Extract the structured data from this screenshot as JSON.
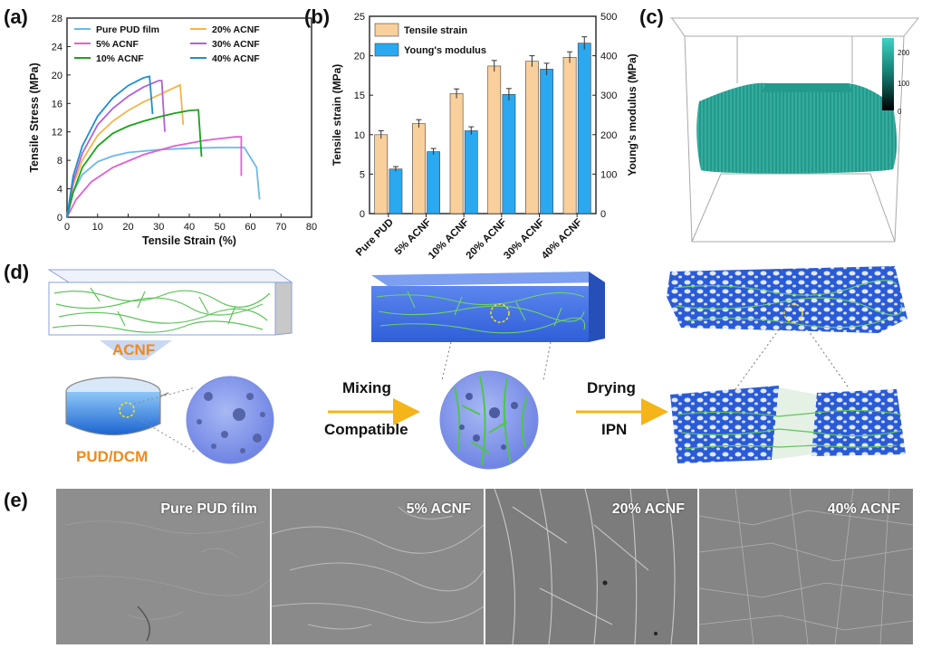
{
  "panels": {
    "a": "(a)",
    "b": "(b)",
    "c": "(c)",
    "d": "(d)",
    "e": "(e)"
  },
  "colors": {
    "pure": "#6bb9e8",
    "acnf5": "#e05fd6",
    "acnf10": "#1aa31a",
    "acnf20": "#f4b54a",
    "acnf30": "#b35fd6",
    "acnf40": "#1c8fd0",
    "bar_strain": "#f9cf9c",
    "bar_modulus": "#2aa8f0",
    "fiber": "#2fb8a6",
    "matrix": "#3a6de0",
    "arrow": "#f4b41a",
    "orange_text": "#f08a1c"
  },
  "chart_data": [
    {
      "type": "line",
      "xlabel": "Tensile Strain (%)",
      "ylabel": "Tensile Stress (MPa)",
      "xlim": [
        0,
        80
      ],
      "ylim": [
        0,
        28
      ],
      "xticks": [
        "0",
        "10",
        "20",
        "30",
        "40",
        "50",
        "60",
        "70",
        "80"
      ],
      "yticks": [
        "0",
        "4",
        "8",
        "12",
        "16",
        "20",
        "24",
        "28"
      ],
      "legend_placement": "top",
      "series": [
        {
          "name": "Pure PUD film",
          "color_key": "pure",
          "x": [
            0,
            2,
            5,
            10,
            15,
            20,
            30,
            40,
            50,
            58,
            62,
            63
          ],
          "y": [
            0,
            3.5,
            6.0,
            7.8,
            8.6,
            9.1,
            9.5,
            9.7,
            9.8,
            9.8,
            7.0,
            2.5
          ]
        },
        {
          "name": "20% ACNF",
          "color_key": "acnf20",
          "x": [
            0,
            2,
            5,
            10,
            15,
            20,
            25,
            30,
            35,
            37,
            38
          ],
          "y": [
            0,
            4.5,
            8.0,
            11.5,
            13.5,
            15.0,
            16.2,
            17.2,
            18.2,
            18.6,
            13.0
          ]
        },
        {
          "name": "5% ACNF",
          "color_key": "acnf5",
          "x": [
            0,
            3,
            8,
            15,
            25,
            35,
            45,
            55,
            57,
            57
          ],
          "y": [
            0,
            2.5,
            5.0,
            7.0,
            8.8,
            10.0,
            10.8,
            11.3,
            11.3,
            5.8
          ]
        },
        {
          "name": "30% ACNF",
          "color_key": "acnf30",
          "x": [
            0,
            2,
            5,
            10,
            15,
            20,
            25,
            30,
            31,
            32
          ],
          "y": [
            0,
            5.0,
            9.0,
            13.0,
            15.3,
            17.0,
            18.3,
            19.2,
            19.2,
            12.0
          ]
        },
        {
          "name": "10% ACNF",
          "color_key": "acnf10",
          "x": [
            0,
            2,
            5,
            10,
            15,
            20,
            25,
            30,
            35,
            40,
            43,
            44
          ],
          "y": [
            0,
            3.5,
            7.0,
            10.0,
            11.8,
            12.8,
            13.5,
            14.1,
            14.6,
            15.0,
            15.1,
            8.5
          ]
        },
        {
          "name": "40% ACNF",
          "color_key": "acnf40",
          "x": [
            0,
            2,
            5,
            10,
            15,
            20,
            25,
            27,
            28
          ],
          "y": [
            0,
            5.8,
            10.0,
            14.2,
            16.8,
            18.5,
            19.6,
            19.8,
            14.5
          ]
        }
      ]
    },
    {
      "type": "bar",
      "categories": [
        "Pure PUD",
        "5% ACNF",
        "10% ACNF",
        "20% ACNF",
        "30% ACNF",
        "40% ACNF"
      ],
      "ylabel": "Tensile strain (MPa)",
      "y2label": "Young's modulus (MPa)",
      "ylim": [
        0,
        25
      ],
      "y2lim": [
        0,
        500
      ],
      "yticks": [
        "0",
        "5",
        "10",
        "15",
        "20",
        "25"
      ],
      "y2ticks": [
        "0",
        "100",
        "200",
        "300",
        "400",
        "500"
      ],
      "legend_placement": "top-left",
      "series": [
        {
          "name": "Tensile strain",
          "axis": "left",
          "color_key": "bar_strain",
          "values": [
            10.0,
            11.4,
            15.2,
            18.7,
            19.3,
            19.8
          ],
          "errors": [
            0.5,
            0.5,
            0.6,
            0.7,
            0.7,
            0.7
          ]
        },
        {
          "name": "Young's modulus",
          "axis": "right",
          "color_key": "bar_modulus",
          "values": [
            113,
            157,
            210,
            302,
            366,
            432
          ],
          "errors": [
            6,
            8,
            10,
            15,
            15,
            16
          ]
        }
      ]
    }
  ],
  "colorbar": {
    "ticks": [
      "200",
      "100",
      "0"
    ]
  },
  "schematic": {
    "acnf_label": "ACNF",
    "pud_label": "PUD/DCM",
    "mixing_label": "Mixing",
    "compatible_label": "Compatible",
    "drying_label": "Drying",
    "ipn_label": "IPN"
  },
  "sem_images": [
    {
      "label": "Pure PUD film",
      "tone": "#8e8e8e"
    },
    {
      "label": "5% ACNF",
      "tone": "#8a8a8a"
    },
    {
      "label": "20% ACNF",
      "tone": "#7c7c7c"
    },
    {
      "label": "40% ACNF",
      "tone": "#858585"
    }
  ]
}
